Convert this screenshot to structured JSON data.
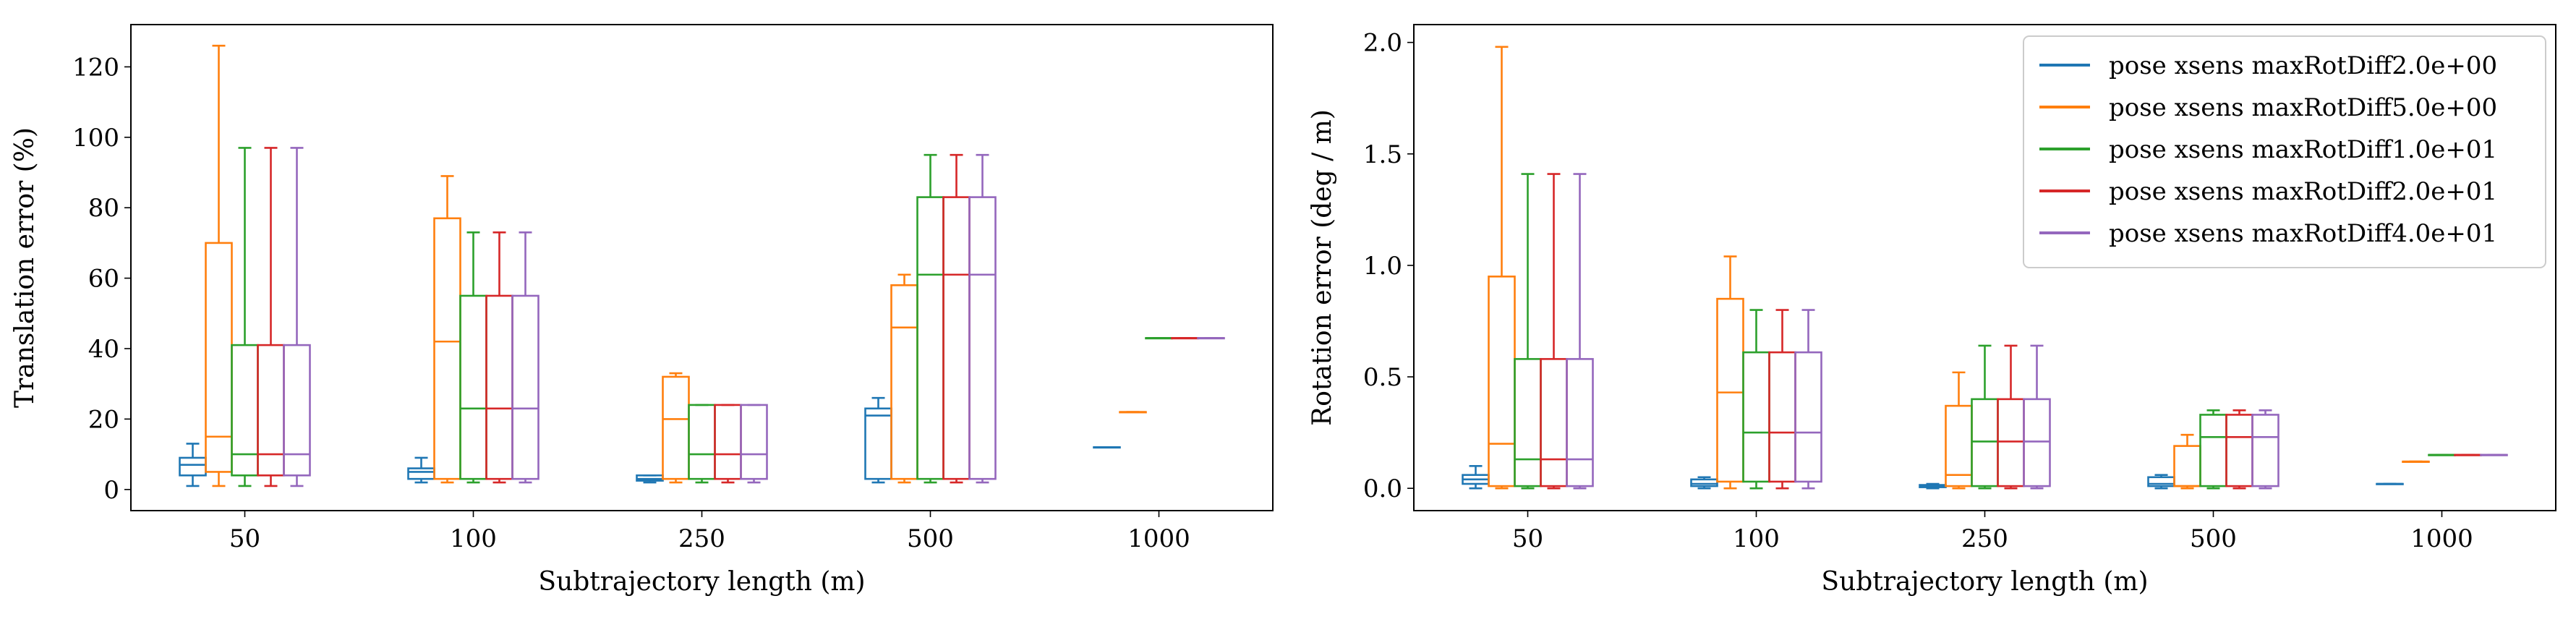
{
  "chart_data": [
    {
      "type": "box",
      "xlabel": "Subtrajectory length (m)",
      "ylabel": "Translation error (%)",
      "categories": [
        "50",
        "100",
        "250",
        "500",
        "1000"
      ],
      "ylim": [
        -6,
        132
      ],
      "yticks": [
        0,
        20,
        40,
        60,
        80,
        100,
        120
      ],
      "legend": null,
      "series": [
        {
          "name": "pose xsens maxRotDiff2.0e+00",
          "color": "#1f77b4",
          "boxes": [
            {
              "min": 1,
              "q1": 4,
              "median": 7,
              "q3": 9,
              "max": 13
            },
            {
              "min": 2,
              "q1": 3,
              "median": 5,
              "q3": 6,
              "max": 9
            },
            {
              "min": 2,
              "q1": 2.5,
              "median": 3,
              "q3": 4,
              "max": 4
            },
            {
              "min": 2,
              "q1": 3,
              "median": 21,
              "q3": 23,
              "max": 26
            },
            {
              "min": 12,
              "q1": 12,
              "median": 12,
              "q3": 12,
              "max": 12
            }
          ]
        },
        {
          "name": "pose xsens maxRotDiff5.0e+00",
          "color": "#ff7f0e",
          "boxes": [
            {
              "min": 1,
              "q1": 5,
              "median": 15,
              "q3": 70,
              "max": 126
            },
            {
              "min": 2,
              "q1": 3,
              "median": 42,
              "q3": 77,
              "max": 89
            },
            {
              "min": 2,
              "q1": 3,
              "median": 20,
              "q3": 32,
              "max": 33
            },
            {
              "min": 2,
              "q1": 3,
              "median": 46,
              "q3": 58,
              "max": 61
            },
            {
              "min": 22,
              "q1": 22,
              "median": 22,
              "q3": 22,
              "max": 22
            }
          ]
        },
        {
          "name": "pose xsens maxRotDiff1.0e+01",
          "color": "#2ca02c",
          "boxes": [
            {
              "min": 1,
              "q1": 4,
              "median": 10,
              "q3": 41,
              "max": 97
            },
            {
              "min": 2,
              "q1": 3,
              "median": 23,
              "q3": 55,
              "max": 73
            },
            {
              "min": 2,
              "q1": 3,
              "median": 10,
              "q3": 24,
              "max": 24
            },
            {
              "min": 2,
              "q1": 3,
              "median": 61,
              "q3": 83,
              "max": 95
            },
            {
              "min": 43,
              "q1": 43,
              "median": 43,
              "q3": 43,
              "max": 43
            }
          ]
        },
        {
          "name": "pose xsens maxRotDiff2.0e+01",
          "color": "#d62728",
          "boxes": [
            {
              "min": 1,
              "q1": 4,
              "median": 10,
              "q3": 41,
              "max": 97
            },
            {
              "min": 2,
              "q1": 3,
              "median": 23,
              "q3": 55,
              "max": 73
            },
            {
              "min": 2,
              "q1": 3,
              "median": 10,
              "q3": 24,
              "max": 24
            },
            {
              "min": 2,
              "q1": 3,
              "median": 61,
              "q3": 83,
              "max": 95
            },
            {
              "min": 43,
              "q1": 43,
              "median": 43,
              "q3": 43,
              "max": 43
            }
          ]
        },
        {
          "name": "pose xsens maxRotDiff4.0e+01",
          "color": "#9467bd",
          "boxes": [
            {
              "min": 1,
              "q1": 4,
              "median": 10,
              "q3": 41,
              "max": 97
            },
            {
              "min": 2,
              "q1": 3,
              "median": 23,
              "q3": 55,
              "max": 73
            },
            {
              "min": 2,
              "q1": 3,
              "median": 10,
              "q3": 24,
              "max": 24
            },
            {
              "min": 2,
              "q1": 3,
              "median": 61,
              "q3": 83,
              "max": 95
            },
            {
              "min": 43,
              "q1": 43,
              "median": 43,
              "q3": 43,
              "max": 43
            }
          ]
        }
      ]
    },
    {
      "type": "box",
      "xlabel": "Subtrajectory length (m)",
      "ylabel": "Rotation error (deg / m)",
      "categories": [
        "50",
        "100",
        "250",
        "500",
        "1000"
      ],
      "ylim": [
        -0.1,
        2.08
      ],
      "yticks": [
        0.0,
        0.5,
        1.0,
        1.5,
        2.0
      ],
      "ytick_labels": [
        "0.0",
        "0.5",
        "1.0",
        "1.5",
        "2.0"
      ],
      "legend": "top-right",
      "series": [
        {
          "name": "pose xsens maxRotDiff2.0e+00",
          "color": "#1f77b4",
          "boxes": [
            {
              "min": 0.0,
              "q1": 0.02,
              "median": 0.04,
              "q3": 0.06,
              "max": 0.1
            },
            {
              "min": 0.0,
              "q1": 0.01,
              "median": 0.02,
              "q3": 0.04,
              "max": 0.05
            },
            {
              "min": 0.0,
              "q1": 0.005,
              "median": 0.01,
              "q3": 0.015,
              "max": 0.02
            },
            {
              "min": 0.0,
              "q1": 0.01,
              "median": 0.02,
              "q3": 0.05,
              "max": 0.06
            },
            {
              "min": 0.02,
              "q1": 0.02,
              "median": 0.02,
              "q3": 0.02,
              "max": 0.02
            }
          ]
        },
        {
          "name": "pose xsens maxRotDiff5.0e+00",
          "color": "#ff7f0e",
          "boxes": [
            {
              "min": 0.0,
              "q1": 0.01,
              "median": 0.2,
              "q3": 0.95,
              "max": 1.98
            },
            {
              "min": 0.0,
              "q1": 0.03,
              "median": 0.43,
              "q3": 0.85,
              "max": 1.04
            },
            {
              "min": 0.0,
              "q1": 0.01,
              "median": 0.06,
              "q3": 0.37,
              "max": 0.52
            },
            {
              "min": 0.0,
              "q1": 0.01,
              "median": 0.01,
              "q3": 0.19,
              "max": 0.24
            },
            {
              "min": 0.12,
              "q1": 0.12,
              "median": 0.12,
              "q3": 0.12,
              "max": 0.12
            }
          ]
        },
        {
          "name": "pose xsens maxRotDiff1.0e+01",
          "color": "#2ca02c",
          "boxes": [
            {
              "min": 0.0,
              "q1": 0.01,
              "median": 0.13,
              "q3": 0.58,
              "max": 1.41
            },
            {
              "min": 0.0,
              "q1": 0.03,
              "median": 0.25,
              "q3": 0.61,
              "max": 0.8
            },
            {
              "min": 0.0,
              "q1": 0.01,
              "median": 0.21,
              "q3": 0.4,
              "max": 0.64
            },
            {
              "min": 0.0,
              "q1": 0.01,
              "median": 0.23,
              "q3": 0.33,
              "max": 0.35
            },
            {
              "min": 0.15,
              "q1": 0.15,
              "median": 0.15,
              "q3": 0.15,
              "max": 0.15
            }
          ]
        },
        {
          "name": "pose xsens maxRotDiff2.0e+01",
          "color": "#d62728",
          "boxes": [
            {
              "min": 0.0,
              "q1": 0.01,
              "median": 0.13,
              "q3": 0.58,
              "max": 1.41
            },
            {
              "min": 0.0,
              "q1": 0.03,
              "median": 0.25,
              "q3": 0.61,
              "max": 0.8
            },
            {
              "min": 0.0,
              "q1": 0.01,
              "median": 0.21,
              "q3": 0.4,
              "max": 0.64
            },
            {
              "min": 0.0,
              "q1": 0.01,
              "median": 0.23,
              "q3": 0.33,
              "max": 0.35
            },
            {
              "min": 0.15,
              "q1": 0.15,
              "median": 0.15,
              "q3": 0.15,
              "max": 0.15
            }
          ]
        },
        {
          "name": "pose xsens maxRotDiff4.0e+01",
          "color": "#9467bd",
          "boxes": [
            {
              "min": 0.0,
              "q1": 0.01,
              "median": 0.13,
              "q3": 0.58,
              "max": 1.41
            },
            {
              "min": 0.0,
              "q1": 0.03,
              "median": 0.25,
              "q3": 0.61,
              "max": 0.8
            },
            {
              "min": 0.0,
              "q1": 0.01,
              "median": 0.21,
              "q3": 0.4,
              "max": 0.64
            },
            {
              "min": 0.0,
              "q1": 0.01,
              "median": 0.23,
              "q3": 0.33,
              "max": 0.35
            },
            {
              "min": 0.15,
              "q1": 0.15,
              "median": 0.15,
              "q3": 0.15,
              "max": 0.15
            }
          ]
        }
      ]
    }
  ]
}
